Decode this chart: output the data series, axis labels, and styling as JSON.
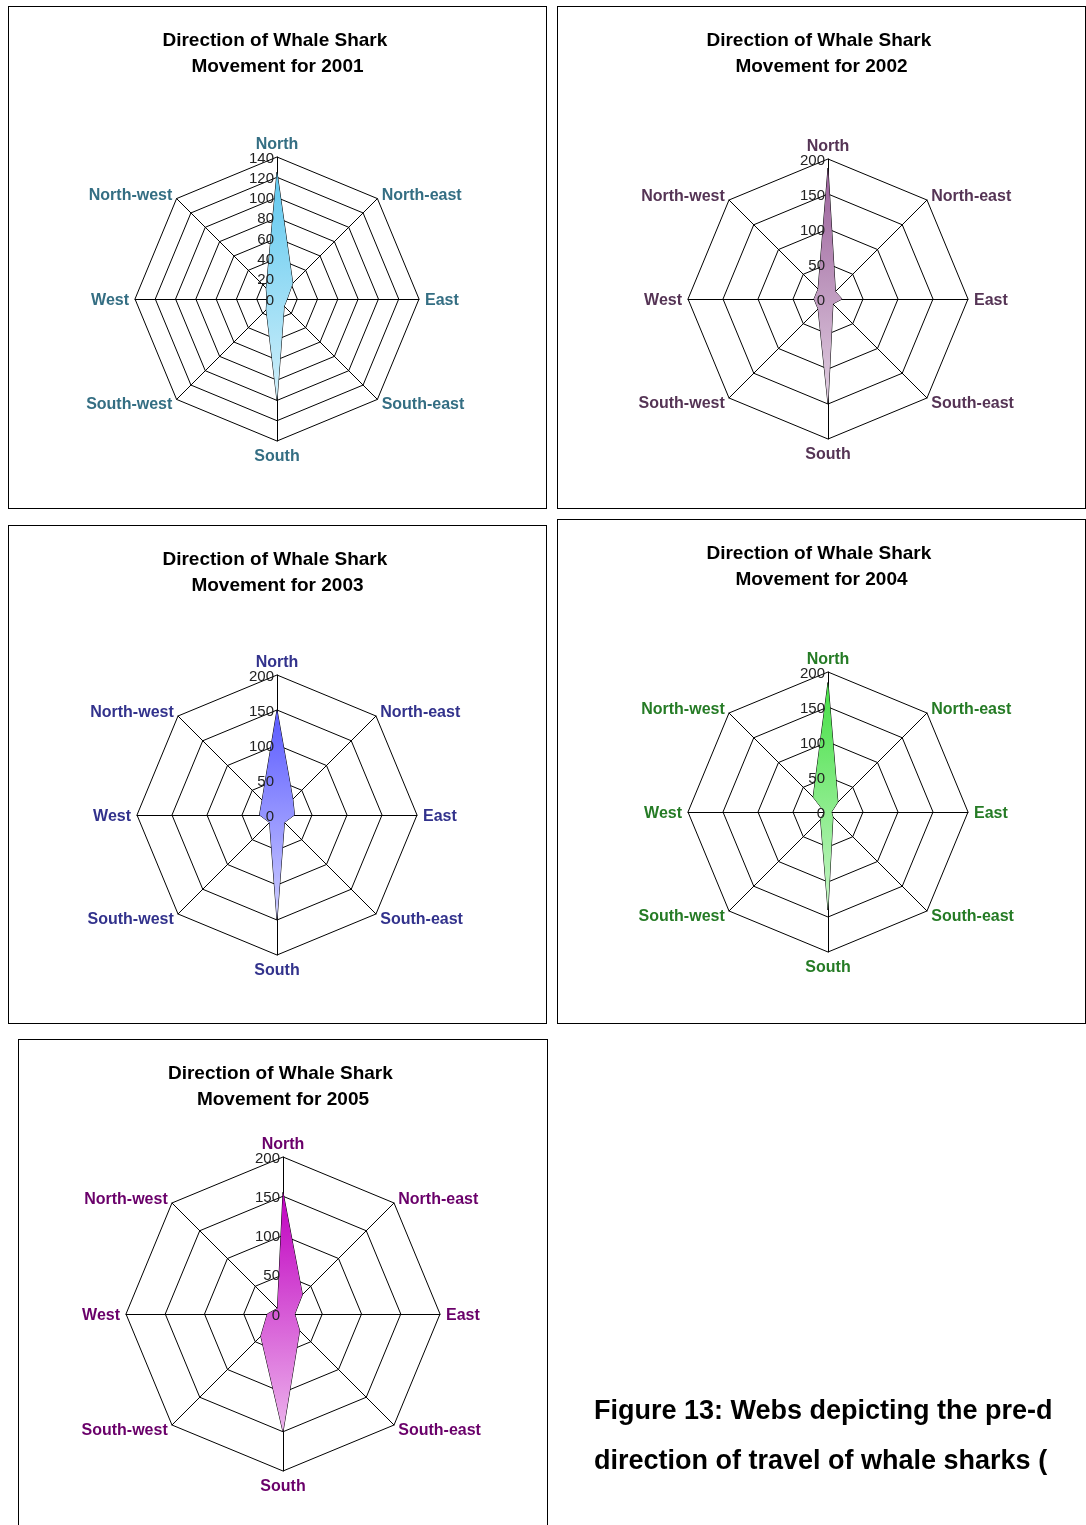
{
  "chart_data": [
    {
      "type": "radar",
      "title": "Direction of Whale Shark Movement for 2001",
      "categories": [
        "North",
        "North-east",
        "East",
        "South-east",
        "South",
        "South-west",
        "West",
        "North-west"
      ],
      "ylim": [
        0,
        140
      ],
      "yticks": [
        0,
        20,
        40,
        60,
        80,
        100,
        120,
        140
      ],
      "series": [
        {
          "color": "#5fc8ef",
          "values": [
            125,
            22,
            10,
            10,
            100,
            15,
            10,
            15
          ]
        }
      ]
    },
    {
      "type": "radar",
      "title": "Direction of Whale Shark Movement for 2002",
      "categories": [
        "North",
        "North-east",
        "East",
        "South-east",
        "South",
        "South-west",
        "West",
        "North-west"
      ],
      "ylim": [
        0,
        200
      ],
      "yticks": [
        0,
        50,
        100,
        150,
        200
      ],
      "series": [
        {
          "color": "#9a5f9a",
          "values": [
            187,
            15,
            20,
            10,
            150,
            20,
            20,
            20
          ]
        }
      ]
    },
    {
      "type": "radar",
      "title": "Direction of Whale Shark Movement for 2003",
      "categories": [
        "North",
        "North-east",
        "East",
        "South-east",
        "South",
        "South-west",
        "West",
        "North-west"
      ],
      "ylim": [
        0,
        200
      ],
      "yticks": [
        0,
        50,
        100,
        150,
        200
      ],
      "series": [
        {
          "color": "#5a5aff",
          "values": [
            150,
            32,
            25,
            15,
            150,
            15,
            25,
            30
          ]
        }
      ]
    },
    {
      "type": "radar",
      "title": "Direction of Whale Shark Movement for 2004",
      "categories": [
        "North",
        "North-east",
        "East",
        "South-east",
        "South",
        "South-west",
        "West",
        "North-west"
      ],
      "ylim": [
        0,
        200
      ],
      "yticks": [
        0,
        50,
        100,
        150,
        200
      ],
      "series": [
        {
          "color": "#44e044",
          "values": [
            185,
            20,
            5,
            10,
            140,
            15,
            5,
            30
          ]
        }
      ]
    },
    {
      "type": "radar",
      "title": "Direction of Whale Shark Movement for 2005",
      "categories": [
        "North",
        "North-east",
        "East",
        "South-east",
        "South",
        "South-west",
        "West",
        "North-west"
      ],
      "ylim": [
        0,
        200
      ],
      "yticks": [
        0,
        50,
        100,
        150,
        200
      ],
      "series": [
        {
          "color": "#c000c0",
          "values": [
            155,
            35,
            15,
            30,
            150,
            40,
            20,
            10
          ]
        }
      ]
    },
    {
      "type": "other",
      "annotations": [
        "Figure 13: Webs depicting the pre-d",
        "direction of travel of whale sharks ("
      ]
    }
  ]
}
